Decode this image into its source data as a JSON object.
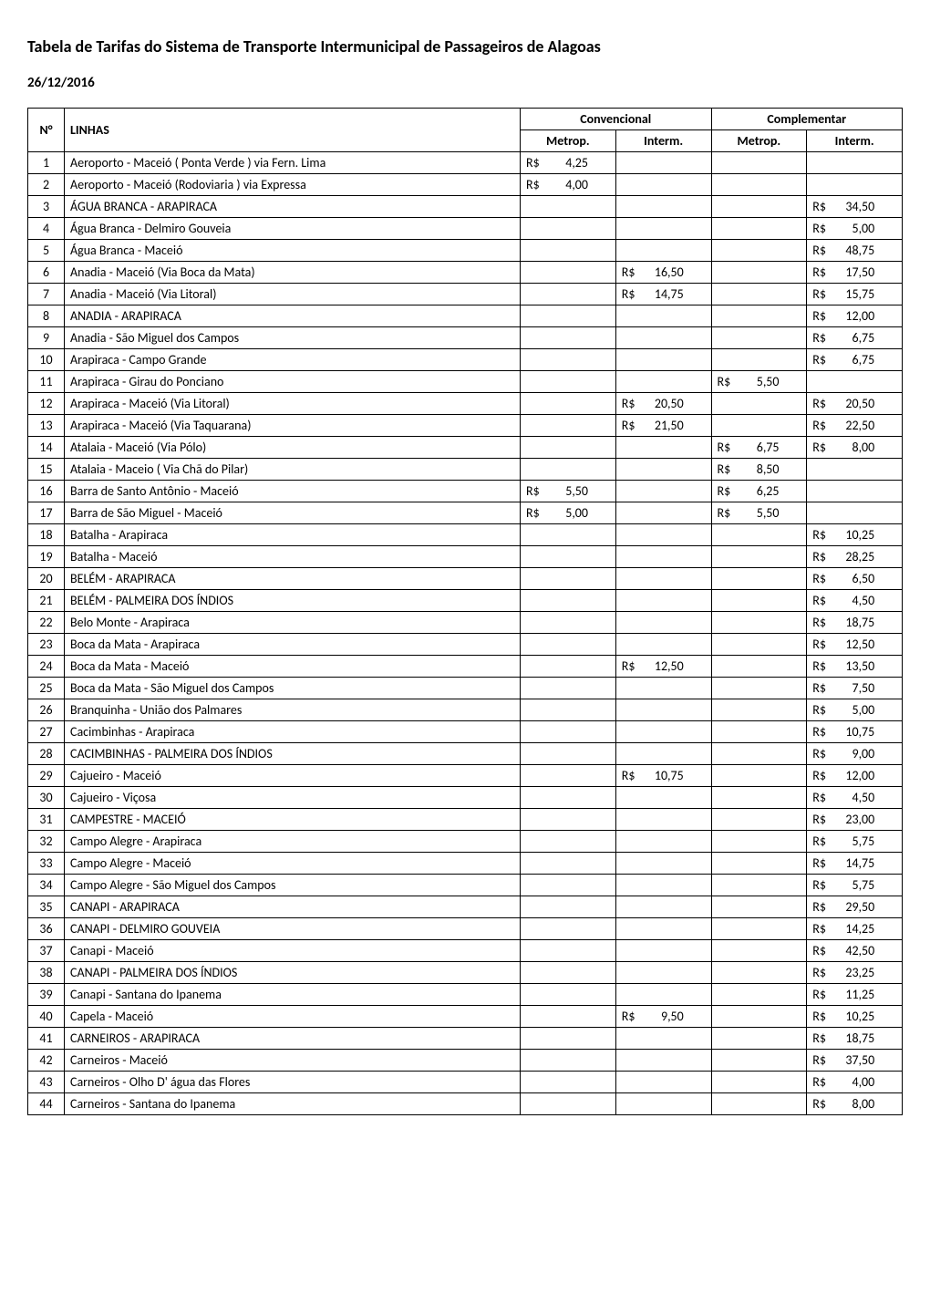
{
  "title": "Tabela de Tarifas do Sistema de Transporte Intermunicipal de Passageiros de Alagoas",
  "date": "26/12/2016",
  "headers": {
    "num": "N°",
    "linhas": "LINHAS",
    "convencional": "Convencional",
    "complementar": "Complementar",
    "metrop": "Metrop.",
    "interm": "Interm."
  },
  "currency": "R$",
  "rows": [
    {
      "n": "1",
      "linha": "Aeroporto - Maceió ( Ponta Verde ) via Fern. Lima",
      "cm": "4,25",
      "ci": "",
      "pm": "",
      "pi": ""
    },
    {
      "n": "2",
      "linha": "Aeroporto - Maceió (Rodoviaria ) via Expressa",
      "cm": "4,00",
      "ci": "",
      "pm": "",
      "pi": ""
    },
    {
      "n": "3",
      "linha": "ÁGUA BRANCA - ARAPIRACA",
      "cm": "",
      "ci": "",
      "pm": "",
      "pi": "34,50"
    },
    {
      "n": "4",
      "linha": "Água Branca - Delmiro Gouveia",
      "cm": "",
      "ci": "",
      "pm": "",
      "pi": "5,00"
    },
    {
      "n": "5",
      "linha": "Água Branca - Maceió",
      "cm": "",
      "ci": "",
      "pm": "",
      "pi": "48,75"
    },
    {
      "n": "6",
      "linha": "Anadia  - Maceió (Via Boca da Mata)",
      "cm": "",
      "ci": "16,50",
      "pm": "",
      "pi": "17,50"
    },
    {
      "n": "7",
      "linha": "Anadia  - Maceió (Via Litoral)",
      "cm": "",
      "ci": "14,75",
      "pm": "",
      "pi": "15,75"
    },
    {
      "n": "8",
      "linha": "ANADIA - ARAPIRACA",
      "cm": "",
      "ci": "",
      "pm": "",
      "pi": "12,00"
    },
    {
      "n": "9",
      "linha": "Anadia - São Miguel dos Campos",
      "cm": "",
      "ci": "",
      "pm": "",
      "pi": "6,75"
    },
    {
      "n": "10",
      "linha": "Arapiraca - Campo Grande",
      "cm": "",
      "ci": "",
      "pm": "",
      "pi": "6,75"
    },
    {
      "n": "11",
      "linha": "Arapiraca - Girau do Ponciano",
      "cm": "",
      "ci": "",
      "pm": "5,50",
      "pi": ""
    },
    {
      "n": "12",
      "linha": "Arapiraca - Maceió (Via Litoral)",
      "cm": "",
      "ci": "20,50",
      "pm": "",
      "pi": "20,50"
    },
    {
      "n": "13",
      "linha": "Arapiraca - Maceió (Via Taquarana)",
      "cm": "",
      "ci": "21,50",
      "pm": "",
      "pi": "22,50"
    },
    {
      "n": "14",
      "linha": "Atalaia - Maceió  (Via Pólo)",
      "cm": "",
      "ci": "",
      "pm": "6,75",
      "pi": "8,00"
    },
    {
      "n": "15",
      "linha": "Atalaia - Maceio ( Via Chã do Pilar)",
      "cm": "",
      "ci": "",
      "pm": "8,50",
      "pi": ""
    },
    {
      "n": "16",
      "linha": "Barra de Santo Antônio - Maceió",
      "cm": "5,50",
      "ci": "",
      "pm": "6,25",
      "pi": ""
    },
    {
      "n": "17",
      "linha": "Barra de São Miguel - Maceió",
      "cm": "5,00",
      "ci": "",
      "pm": "5,50",
      "pi": ""
    },
    {
      "n": "18",
      "linha": "Batalha - Arapiraca",
      "cm": "",
      "ci": "",
      "pm": "",
      "pi": "10,25"
    },
    {
      "n": "19",
      "linha": "Batalha - Maceió",
      "cm": "",
      "ci": "",
      "pm": "",
      "pi": "28,25"
    },
    {
      "n": "20",
      "linha": "BELÉM  - ARAPIRACA",
      "cm": "",
      "ci": "",
      "pm": "",
      "pi": "6,50"
    },
    {
      "n": "21",
      "linha": "BELÉM - PALMEIRA DOS ÍNDIOS",
      "cm": "",
      "ci": "",
      "pm": "",
      "pi": "4,50"
    },
    {
      "n": "22",
      "linha": "Belo Monte - Arapiraca",
      "cm": "",
      "ci": "",
      "pm": "",
      "pi": "18,75"
    },
    {
      "n": "23",
      "linha": "Boca da Mata - Arapiraca",
      "cm": "",
      "ci": "",
      "pm": "",
      "pi": "12,50"
    },
    {
      "n": "24",
      "linha": "Boca da Mata - Maceió",
      "cm": "",
      "ci": "12,50",
      "pm": "",
      "pi": "13,50"
    },
    {
      "n": "25",
      "linha": "Boca da Mata - São Miguel dos Campos",
      "cm": "",
      "ci": "",
      "pm": "",
      "pi": "7,50"
    },
    {
      "n": "26",
      "linha": "Branquinha - União dos Palmares",
      "cm": "",
      "ci": "",
      "pm": "",
      "pi": "5,00"
    },
    {
      "n": "27",
      "linha": "Cacimbinhas - Arapiraca",
      "cm": "",
      "ci": "",
      "pm": "",
      "pi": "10,75"
    },
    {
      "n": "28",
      "linha": "CACIMBINHAS - PALMEIRA DOS ÍNDIOS",
      "cm": "",
      "ci": "",
      "pm": "",
      "pi": "9,00"
    },
    {
      "n": "29",
      "linha": "Cajueiro - Maceió",
      "cm": "",
      "ci": "10,75",
      "pm": "",
      "pi": "12,00"
    },
    {
      "n": "30",
      "linha": "Cajueiro - Viçosa",
      "cm": "",
      "ci": "",
      "pm": "",
      "pi": "4,50"
    },
    {
      "n": "31",
      "linha": "CAMPESTRE - MACEIÓ",
      "cm": "",
      "ci": "",
      "pm": "",
      "pi": "23,00"
    },
    {
      "n": "32",
      "linha": "Campo Alegre - Arapiraca",
      "cm": "",
      "ci": "",
      "pm": "",
      "pi": "5,75"
    },
    {
      "n": "33",
      "linha": "Campo Alegre - Maceió",
      "cm": "",
      "ci": "",
      "pm": "",
      "pi": "14,75"
    },
    {
      "n": "34",
      "linha": "Campo Alegre - São Miguel dos Campos",
      "cm": "",
      "ci": "",
      "pm": "",
      "pi": "5,75"
    },
    {
      "n": "35",
      "linha": "CANAPI - ARAPIRACA",
      "cm": "",
      "ci": "",
      "pm": "",
      "pi": "29,50"
    },
    {
      "n": "36",
      "linha": "CANAPI - DELMIRO GOUVEIA",
      "cm": "",
      "ci": "",
      "pm": "",
      "pi": "14,25"
    },
    {
      "n": "37",
      "linha": "Canapi - Maceió",
      "cm": "",
      "ci": "",
      "pm": "",
      "pi": "42,50"
    },
    {
      "n": "38",
      "linha": "CANAPI - PALMEIRA DOS ÍNDIOS",
      "cm": "",
      "ci": "",
      "pm": "",
      "pi": "23,25"
    },
    {
      "n": "39",
      "linha": "Canapi - Santana do Ipanema",
      "cm": "",
      "ci": "",
      "pm": "",
      "pi": "11,25"
    },
    {
      "n": "40",
      "linha": "Capela - Maceió",
      "cm": "",
      "ci": "9,50",
      "pm": "",
      "pi": "10,25"
    },
    {
      "n": "41",
      "linha": "CARNEIROS - ARAPIRACA",
      "cm": "",
      "ci": "",
      "pm": "",
      "pi": "18,75"
    },
    {
      "n": "42",
      "linha": "Carneiros - Maceió",
      "cm": "",
      "ci": "",
      "pm": "",
      "pi": "37,50"
    },
    {
      "n": "43",
      "linha": "Carneiros - Olho D' água das Flores",
      "cm": "",
      "ci": "",
      "pm": "",
      "pi": "4,00"
    },
    {
      "n": "44",
      "linha": "Carneiros - Santana do Ipanema",
      "cm": "",
      "ci": "",
      "pm": "",
      "pi": "8,00"
    }
  ]
}
